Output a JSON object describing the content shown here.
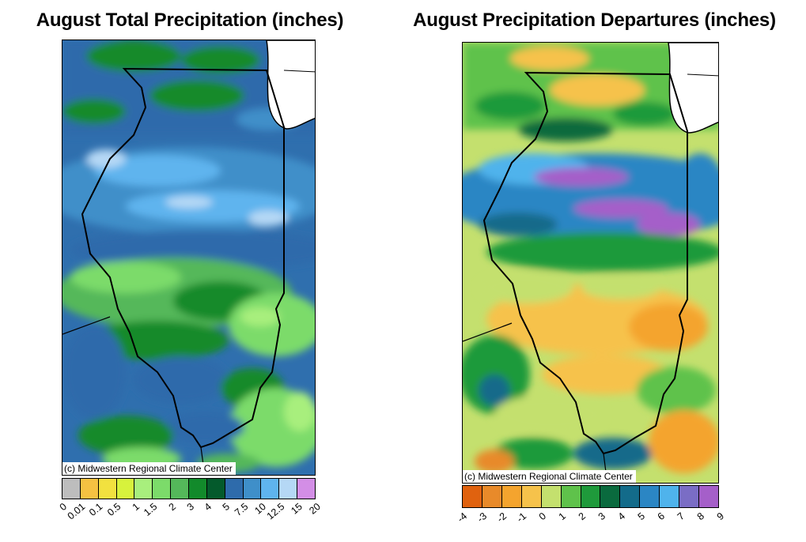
{
  "left_map": {
    "title": "August Total Precipitation (inches)",
    "credit": "(c) Midwestern Regional Climate Center",
    "legend": {
      "ticks": [
        "0",
        "0.01",
        "0.1",
        "0.5",
        "1",
        "1.5",
        "2",
        "3",
        "4",
        "5",
        "7.5",
        "10",
        "12.5",
        "15",
        "20"
      ],
      "colors": [
        "#bdbdbd",
        "#f5c242",
        "#f2e13f",
        "#d7f23c",
        "#a8ef7d",
        "#7cdb6a",
        "#54b85a",
        "#128a2b",
        "#045a2c",
        "#2e6bab",
        "#3f8fc9",
        "#5fb4ee",
        "#b5d8f5",
        "#d38ee6"
      ]
    }
  },
  "right_map": {
    "title": "August Precipitation Departures (inches)",
    "credit": "(c) Midwestern Regional Climate Center",
    "legend": {
      "ticks": [
        "-4",
        "-3",
        "-2",
        "-1",
        "0",
        "1",
        "2",
        "3",
        "4",
        "5",
        "6",
        "7",
        "8",
        "9"
      ],
      "colors": [
        "#e0620f",
        "#e88a2a",
        "#f4a42e",
        "#f6c24b",
        "#c4e06e",
        "#5fc24b",
        "#1f9a3b",
        "#0a6a3e",
        "#136b8a",
        "#2b86c4",
        "#4fb3ec",
        "#7a6dc5",
        "#a55fc9"
      ]
    }
  }
}
